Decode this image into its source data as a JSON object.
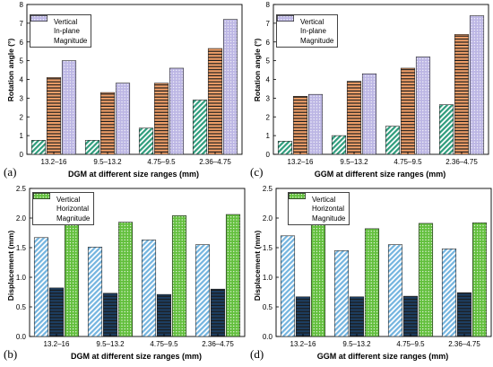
{
  "chart_data": [
    {
      "id": "a",
      "type": "bar",
      "panel_label": "(a)",
      "xlabel": "DGM at different size ranges (mm)",
      "ylabel": "Rotation angle (°)",
      "categories": [
        "13.2–16",
        "9.5–13.2",
        "4.75–9.5",
        "2.36–4.75"
      ],
      "ylim": [
        0,
        8
      ],
      "yticks": [
        "0",
        "1",
        "2",
        "3",
        "4",
        "5",
        "6",
        "7",
        "8"
      ],
      "legend_position": "top-left",
      "series": [
        {
          "name": "Vertical",
          "values": [
            0.75,
            0.75,
            1.4,
            2.9
          ],
          "color": "#2e9c7c",
          "pattern": "diag"
        },
        {
          "name": "In-plane",
          "values": [
            4.1,
            3.3,
            3.8,
            5.65
          ],
          "color": "#f2a16a",
          "pattern": "hlines"
        },
        {
          "name": "Magnitude",
          "values": [
            5.0,
            3.8,
            4.6,
            7.2
          ],
          "color": "#bcb6e4",
          "pattern": "dots"
        }
      ]
    },
    {
      "id": "c",
      "type": "bar",
      "panel_label": "(c)",
      "xlabel": "GGM at different size ranges (mm)",
      "ylabel": "Rotation angle (°)",
      "categories": [
        "13.2–16",
        "9.5–13.2",
        "4.75–9.5",
        "2.36–4.75"
      ],
      "ylim": [
        0,
        8
      ],
      "yticks": [
        "0",
        "1",
        "2",
        "3",
        "4",
        "5",
        "6",
        "7",
        "8"
      ],
      "legend_position": "top-left",
      "series": [
        {
          "name": "Vertical",
          "values": [
            0.7,
            1.0,
            1.5,
            2.65
          ],
          "color": "#2e9c7c",
          "pattern": "diag"
        },
        {
          "name": "In-plane",
          "values": [
            3.1,
            3.9,
            4.6,
            6.4
          ],
          "color": "#f2a16a",
          "pattern": "hlines"
        },
        {
          "name": "Magnitude",
          "values": [
            3.2,
            4.3,
            5.2,
            7.4
          ],
          "color": "#bcb6e4",
          "pattern": "dots"
        }
      ]
    },
    {
      "id": "b",
      "type": "bar",
      "panel_label": "(b)",
      "xlabel": "DGM at different size ranges (mm)",
      "ylabel": "Displacement (mm)",
      "categories": [
        "13.2–16",
        "9.5–13.2",
        "4.75–9.5",
        "2.36–4.75"
      ],
      "ylim": [
        0,
        2.5
      ],
      "yticks": [
        "0.0",
        "0.5",
        "1.0",
        "1.5",
        "2.0",
        "2.5"
      ],
      "legend_position": "top-left",
      "series": [
        {
          "name": "Vertical",
          "values": [
            1.67,
            1.51,
            1.63,
            1.55
          ],
          "color": "#73b4df",
          "pattern": "diag"
        },
        {
          "name": "Horizontal",
          "values": [
            0.82,
            0.73,
            0.71,
            0.8
          ],
          "color": "#1d3f63",
          "pattern": "hlines"
        },
        {
          "name": "Magnitude",
          "values": [
            2.02,
            1.93,
            2.04,
            2.06
          ],
          "color": "#62bf3c",
          "pattern": "dots"
        }
      ]
    },
    {
      "id": "d",
      "type": "bar",
      "panel_label": "(d)",
      "xlabel": "GGM at different size ranges (mm)",
      "ylabel": "Displacement (mm)",
      "categories": [
        "13.2–16",
        "9.5–13.2",
        "4.75–9.5",
        "2.36–4.75"
      ],
      "ylim": [
        0,
        2.5
      ],
      "yticks": [
        "0.0",
        "0.5",
        "1.0",
        "1.5",
        "2.0",
        "2.5"
      ],
      "legend_position": "top-left",
      "series": [
        {
          "name": "Vertical",
          "values": [
            1.7,
            1.45,
            1.55,
            1.48
          ],
          "color": "#73b4df",
          "pattern": "diag"
        },
        {
          "name": "Horizontal",
          "values": [
            0.67,
            0.67,
            0.68,
            0.74
          ],
          "color": "#1d3f63",
          "pattern": "hlines"
        },
        {
          "name": "Magnitude",
          "values": [
            1.98,
            1.82,
            1.91,
            1.92
          ],
          "color": "#62bf3c",
          "pattern": "dots"
        }
      ]
    }
  ]
}
